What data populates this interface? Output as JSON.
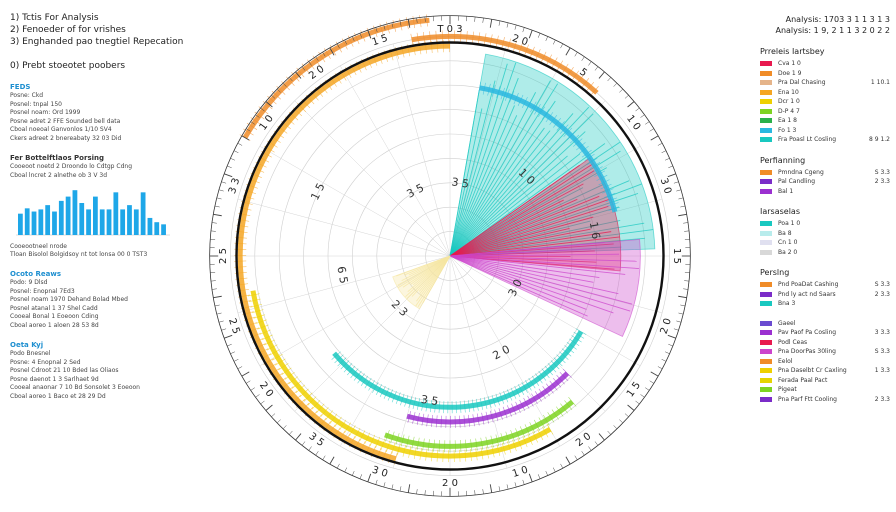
{
  "header": {
    "lines": [
      "1) Tctis For Analysis",
      "2) Fenoeder of for vrishes",
      "3) Enghanded pao tnegtiel Repecation"
    ],
    "subline": "0) Prebt stoeotet poobers"
  },
  "top_right": {
    "line1": "Analysis: 1703 3 1 1 3 1 3",
    "line2": "Analysis: 1 9, 2 1 1 3 2 0 2 2"
  },
  "left_sections": [
    {
      "title": "FEDS",
      "lines": [
        "Posne: Ckd",
        "Posnel: tnpal 150",
        "Posnel noam: Ord 1999",
        "Posne adret 2 FFE Sounded bell data",
        "Cboal noeoal Ganvonlos 1/10 SV4",
        "Ckers adreet 2 bnereabaty 32 03 Did"
      ]
    },
    {
      "title": "Fer Bottelftlaos Porsing",
      "dark": true,
      "lines": [
        "Cooeoot noetd 2 Droondo lo Cdtgp Cdng",
        "Cboal lncret 2 alnethe ob 3 V 3d"
      ]
    },
    {
      "title": "Ocoto Reaws",
      "lines": [
        "Podo: 9 Dlsd",
        "Posnel: Enopnal 7Ed3",
        "Posnel noam 1970 Dehand Bolad Mbed",
        "Posnel atanal 1 37 Shel Cadd",
        "Cooeal Bonal 1 Eoeoon Cding",
        "Cboal aoreo 1 aloen 28 53 8d"
      ]
    },
    {
      "title": "Oeta Kyj",
      "lines": [
        "Podo Bnesnel",
        "Posne: 4 Enopnal 2 Sed",
        "Posnel Cdroot 21 10 Bded las Oliaos",
        "Posne daenot 1 3 Sarlhaet 9d",
        "Cooeal anaonar 7 10 Bd Sonsolet 3 Eoeoon",
        "Cboal aoreo 1 Baco et 28 29 Dd"
      ]
    }
  ],
  "mini_chart": {
    "values": [
      20,
      25,
      22,
      24,
      28,
      22,
      32,
      36,
      42,
      30,
      24,
      36,
      24,
      24,
      40,
      24,
      28,
      24,
      40,
      16,
      12,
      10
    ],
    "caption_line1": "Cooeootneel nrode",
    "caption_line2": "Tloan Bisolol Bolgidsoy nt tot lonsa 00 0 TST3"
  },
  "legend_groups": [
    {
      "title": "Prreleis Iartsbey",
      "items": [
        {
          "color": "#e8194f",
          "label": "Cva 1 0",
          "value": ""
        },
        {
          "color": "#f08c28",
          "label": "Doe 1 9",
          "value": ""
        },
        {
          "color": "#e5b48a",
          "label": "Pra Dal Chasing",
          "value": "1 10.1"
        },
        {
          "color": "#f5a623",
          "label": "Ena 10",
          "value": ""
        },
        {
          "color": "#eed000",
          "label": "Dcr 1 0",
          "value": ""
        },
        {
          "color": "#7ed321",
          "label": "D-P 4 7",
          "value": ""
        },
        {
          "color": "#2ab04a",
          "label": "Ea 1 8",
          "value": ""
        },
        {
          "color": "#2ab8e0",
          "label": "Fo 1 3",
          "value": ""
        },
        {
          "color": "#19c8c0",
          "label": "Fra Poasl Lt Cosling",
          "value": "8 9 1.2"
        }
      ]
    },
    {
      "title": "Perfianning",
      "items": [
        {
          "color": "#f08c28",
          "label": "Pmndna Cgeng",
          "value": "S 3.3"
        },
        {
          "color": "#7b2cc8",
          "label": "Pal Candling",
          "value": "2 3.3"
        },
        {
          "color": "#9b30d0",
          "label": "Bal 1",
          "value": ""
        }
      ]
    },
    {
      "title": "Iarsaselas",
      "items": [
        {
          "color": "#19c8c0",
          "label": "Poa 1 0",
          "value": ""
        },
        {
          "color": "#b8ecec",
          "label": "Ba 8",
          "value": ""
        },
        {
          "color": "#e0e0f0",
          "label": "Cn 1 0",
          "value": ""
        },
        {
          "color": "#d8d8d8",
          "label": "Ba 2 0",
          "value": ""
        }
      ]
    },
    {
      "title": "Perslng",
      "items": [
        {
          "color": "#f08c28",
          "label": "Pnd PoaDat Cashing",
          "value": "S 3.3"
        },
        {
          "color": "#7b2cc8",
          "label": "Pnd ly act nd Saars",
          "value": "2 3.3"
        },
        {
          "color": "#19c8c0",
          "label": "Bna 3",
          "value": ""
        }
      ]
    },
    {
      "title": "",
      "items": [
        {
          "color": "#6a4bd0",
          "label": "Gaeel",
          "value": ""
        },
        {
          "color": "#9b30d0",
          "label": "Pav Paof Pa Cosling",
          "value": "3 3.3"
        },
        {
          "color": "#e8194f",
          "label": "Podl Ceas",
          "value": ""
        },
        {
          "color": "#cc44cc",
          "label": "Pna DoorPas 30ling",
          "value": "S 3.3"
        },
        {
          "color": "#f08c28",
          "label": "Eelol",
          "value": ""
        },
        {
          "color": "#eed000",
          "label": "Pna Daselbt Cr Caxling",
          "value": "1 3.3"
        },
        {
          "color": "#e5d400",
          "label": "Ferada Paal Pact",
          "value": ""
        },
        {
          "color": "#7ed321",
          "label": "Pigeat",
          "value": ""
        },
        {
          "color": "#7b2cc8",
          "label": "Pna Parf Ftt Cooling",
          "value": "2 3.3"
        }
      ]
    }
  ],
  "chart_data": {
    "type": "radial",
    "outer_ticks": [
      "T 0 3",
      "2 0",
      "5",
      "1 0",
      "3 0",
      "1 5",
      "2 0",
      "1 5",
      "2 0",
      "1 0",
      "2 0",
      "3 0",
      "3 5",
      "2 0",
      "2 5",
      "2 5",
      "3 3",
      "1 0",
      "2 0",
      "1 5"
    ],
    "inner_ticks": [
      "3 5",
      "1 0",
      "1 6",
      "3 0",
      "2 0",
      "3 5",
      "2 3",
      "6 5",
      "1 5",
      "3 5"
    ],
    "arcs": [
      {
        "color": "#f08c28",
        "start": 300,
        "end": 355,
        "level": 0.97
      },
      {
        "color": "#f08c28",
        "start": 350,
        "end": 42,
        "level": 0.9
      },
      {
        "color": "#f5a623",
        "start": 195,
        "end": 360,
        "level": 0.86
      },
      {
        "color": "#eed000",
        "start": 150,
        "end": 260,
        "level": 0.82
      },
      {
        "color": "#7ed321",
        "start": 140,
        "end": 200,
        "level": 0.78
      },
      {
        "color": "#9b30d0",
        "start": 135,
        "end": 195,
        "level": 0.68
      },
      {
        "color": "#19c8c0",
        "start": 120,
        "end": 230,
        "level": 0.62
      },
      {
        "color": "#2ab8e0",
        "start": 10,
        "end": 75,
        "level": 0.7
      }
    ],
    "wedges": [
      {
        "color": "#19c8c0",
        "start": 10,
        "end": 88,
        "r": 0.84
      },
      {
        "color": "#e8194f",
        "start": 55,
        "end": 95,
        "r": 0.7
      },
      {
        "color": "#cc44cc",
        "start": 85,
        "end": 115,
        "r": 0.78
      },
      {
        "color": "#f5e6a0",
        "start": 210,
        "end": 250,
        "r": 0.25
      }
    ]
  }
}
